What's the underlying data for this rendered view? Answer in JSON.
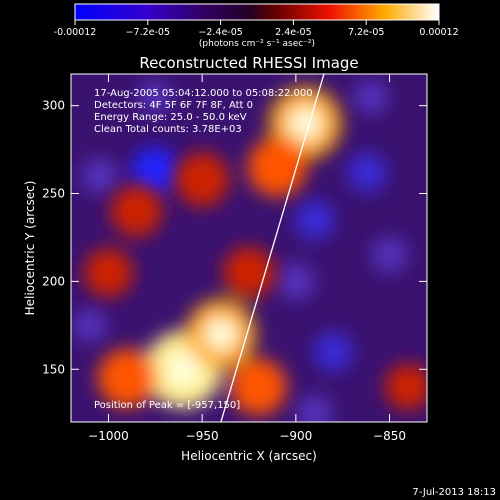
{
  "colorbar": {
    "ticks": [
      "-0.00012",
      "−7.2e-05",
      "−2.4e-05",
      "2.4e-05",
      "7.2e-05",
      "0.00012"
    ],
    "units": "(photons cm⁻² s⁻¹ asec⁻²)"
  },
  "chart_data": {
    "type": "heatmap",
    "title": "Reconstructed RHESSI Image",
    "xlabel": "Heliocentric X (arcsec)",
    "ylabel": "Heliocentric Y (arcsec)",
    "xlim": [
      -1020,
      -830
    ],
    "ylim": [
      120,
      318
    ],
    "xticks": [
      -1000,
      -950,
      -900,
      -850
    ],
    "yticks": [
      150,
      200,
      250,
      300
    ],
    "xtick_labels": [
      "−1000",
      "−950",
      "−900",
      "−850"
    ],
    "ytick_labels": [
      "150",
      "200",
      "250",
      "300"
    ],
    "color_range": [
      -0.00012,
      0.00012
    ],
    "limb_line": {
      "x": [
        -940,
        -885
      ],
      "y": [
        120,
        318
      ]
    },
    "hot_regions": [
      {
        "x": -960,
        "y": 150,
        "level": 0.95
      },
      {
        "x": -940,
        "y": 170,
        "level": 0.8
      },
      {
        "x": -990,
        "y": 145,
        "level": 0.6
      },
      {
        "x": -920,
        "y": 140,
        "level": 0.55
      },
      {
        "x": -895,
        "y": 290,
        "level": 0.85
      },
      {
        "x": -910,
        "y": 265,
        "level": 0.6
      },
      {
        "x": -950,
        "y": 258,
        "level": 0.5
      },
      {
        "x": -985,
        "y": 240,
        "level": 0.45
      },
      {
        "x": -925,
        "y": 205,
        "level": 0.45
      },
      {
        "x": -1000,
        "y": 205,
        "level": 0.4
      },
      {
        "x": -840,
        "y": 140,
        "level": 0.35
      }
    ],
    "cold_regions": [
      {
        "x": -975,
        "y": 263,
        "level": 0.85
      },
      {
        "x": -862,
        "y": 262,
        "level": 0.6
      },
      {
        "x": -890,
        "y": 235,
        "level": 0.6
      },
      {
        "x": -880,
        "y": 160,
        "level": 0.6
      },
      {
        "x": -1005,
        "y": 260,
        "level": 0.5
      },
      {
        "x": -900,
        "y": 200,
        "level": 0.55
      },
      {
        "x": -850,
        "y": 215,
        "level": 0.5
      },
      {
        "x": -860,
        "y": 305,
        "level": 0.45
      },
      {
        "x": -1010,
        "y": 175,
        "level": 0.45
      },
      {
        "x": -890,
        "y": 125,
        "level": 0.5
      },
      {
        "x": -975,
        "y": 305,
        "level": 0.4
      }
    ],
    "annotations": {
      "time_range": "17-Aug-2005 05:04:12.000 to 05:08:22.000",
      "detectors": "Detectors: 4F 5F 6F 7F 8F, Att 0",
      "energy": "Energy Range: 25.0 - 50.0 keV",
      "clean": "Clean    Total counts: 3.78E+03",
      "peak": "Position of Peak = [-957,150]"
    }
  },
  "footer": {
    "date": "7-Jul-2013 18:13"
  }
}
